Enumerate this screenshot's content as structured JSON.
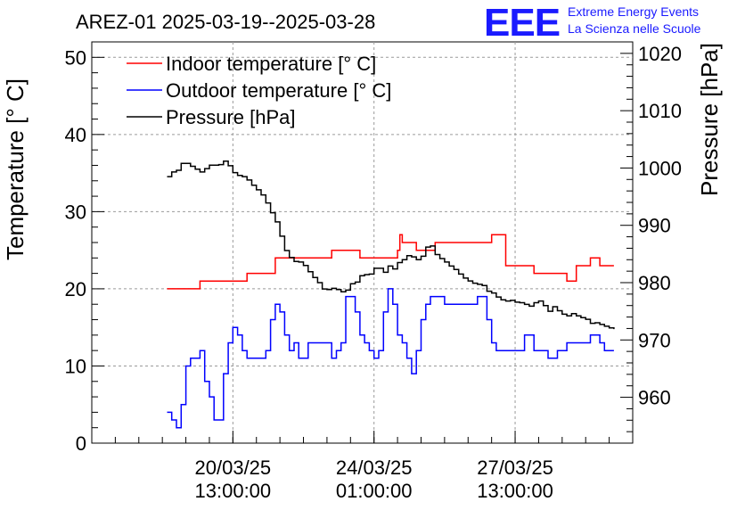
{
  "chart_data": {
    "type": "line",
    "title": "AREZ-01 2025-03-19--2025-03-28",
    "logo": {
      "letters": "EEE",
      "line1": "Extreme Energy Events",
      "line2": "La Scienza nelle Scuole"
    },
    "ylabel": "Temperature [° C]",
    "y2label": "Pressure [hPa]",
    "ylim": [
      0,
      52
    ],
    "y2lim": [
      952,
      1022
    ],
    "xlim": [
      0,
      11.5
    ],
    "yticks": [
      "0",
      "10",
      "20",
      "30",
      "40",
      "50"
    ],
    "y2ticks": [
      "960",
      "970",
      "980",
      "990",
      "1000",
      "1010",
      "1020"
    ],
    "xticks": [
      {
        "line1": "20/03/25",
        "line2": "13:00:00",
        "x": 3
      },
      {
        "line1": "24/03/25",
        "line2": "01:00:00",
        "x": 6
      },
      {
        "line1": "27/03/25",
        "line2": "13:00:00",
        "x": 9
      }
    ],
    "grid": true,
    "legend_position": "top-left",
    "series": [
      {
        "name": "Indoor temperature [° C]",
        "color": "#ff0000",
        "axis": "left",
        "x": [
          1.6,
          1.9,
          2.2,
          2.3,
          2.6,
          2.8,
          3.0,
          3.3,
          3.6,
          3.9,
          4.2,
          4.5,
          4.8,
          5.1,
          5.4,
          5.7,
          6.0,
          6.3,
          6.45,
          6.5,
          6.55,
          6.6,
          6.8,
          6.9,
          7.0,
          7.3,
          7.6,
          7.9,
          8.2,
          8.3,
          8.5,
          8.8,
          9.1,
          9.4,
          9.7,
          9.9,
          10.1,
          10.3,
          10.6,
          10.8,
          11.1
        ],
        "y": [
          20,
          20,
          20,
          21,
          21,
          21,
          21,
          22,
          22,
          24,
          24,
          24,
          24,
          25,
          25,
          24,
          24,
          24,
          24,
          25,
          27,
          26,
          26,
          25,
          25,
          26,
          26,
          26,
          26,
          26,
          27,
          23,
          23,
          22,
          22,
          22,
          21,
          23,
          24,
          23,
          23
        ]
      },
      {
        "name": "Outdoor temperature [° C]",
        "color": "#0000ff",
        "axis": "left",
        "x": [
          1.6,
          1.7,
          1.8,
          1.9,
          2.0,
          2.1,
          2.3,
          2.4,
          2.5,
          2.6,
          2.7,
          2.8,
          2.9,
          3.0,
          3.1,
          3.2,
          3.3,
          3.4,
          3.5,
          3.6,
          3.7,
          3.8,
          3.9,
          4.0,
          4.1,
          4.2,
          4.3,
          4.4,
          4.5,
          4.6,
          4.7,
          4.8,
          4.9,
          5.0,
          5.1,
          5.2,
          5.3,
          5.4,
          5.5,
          5.6,
          5.7,
          5.8,
          5.9,
          6.0,
          6.1,
          6.2,
          6.3,
          6.4,
          6.5,
          6.6,
          6.7,
          6.8,
          6.9,
          7.0,
          7.1,
          7.2,
          7.3,
          7.4,
          7.5,
          7.6,
          7.7,
          7.8,
          7.9,
          8.0,
          8.1,
          8.2,
          8.3,
          8.4,
          8.5,
          8.6,
          8.7,
          8.8,
          8.9,
          9.0,
          9.1,
          9.2,
          9.3,
          9.4,
          9.5,
          9.6,
          9.7,
          9.8,
          9.9,
          10.0,
          10.1,
          10.2,
          10.3,
          10.4,
          10.5,
          10.6,
          10.7,
          10.8,
          10.9,
          11.0,
          11.1
        ],
        "y": [
          4,
          3,
          2,
          5,
          10,
          11,
          12,
          8,
          6,
          3,
          3,
          9,
          13,
          15,
          14,
          12,
          11,
          11,
          11,
          11,
          12,
          16,
          18,
          17,
          14,
          12,
          13,
          11,
          11,
          13,
          13,
          13,
          13,
          13,
          11,
          12,
          13,
          19,
          19,
          17,
          14,
          13,
          12,
          11,
          12,
          17,
          20,
          18,
          14,
          13,
          11,
          9,
          12,
          16,
          18,
          19,
          19,
          19,
          18,
          18,
          18,
          18,
          18,
          18,
          18,
          19,
          19,
          16,
          13,
          12,
          12,
          12,
          12,
          12,
          12,
          14,
          14,
          12,
          12,
          12,
          11,
          11,
          12,
          12,
          13,
          13,
          13,
          13,
          13,
          14,
          14,
          13,
          12,
          12,
          12
        ],
        "note_values_in_celsius": ""
      },
      {
        "name": "Pressure [hPa]",
        "color": "#000000",
        "axis": "right",
        "x": [
          1.6,
          1.7,
          1.8,
          1.9,
          2.0,
          2.1,
          2.2,
          2.3,
          2.4,
          2.5,
          2.6,
          2.7,
          2.8,
          2.9,
          3.0,
          3.1,
          3.2,
          3.3,
          3.4,
          3.5,
          3.6,
          3.7,
          3.8,
          3.9,
          4.0,
          4.1,
          4.2,
          4.3,
          4.4,
          4.5,
          4.6,
          4.7,
          4.8,
          4.9,
          5.0,
          5.1,
          5.2,
          5.3,
          5.4,
          5.5,
          5.6,
          5.7,
          5.8,
          5.9,
          6.0,
          6.1,
          6.2,
          6.3,
          6.4,
          6.5,
          6.6,
          6.7,
          6.8,
          6.9,
          7.0,
          7.1,
          7.2,
          7.3,
          7.4,
          7.5,
          7.6,
          7.7,
          7.8,
          7.9,
          8.0,
          8.1,
          8.2,
          8.3,
          8.4,
          8.5,
          8.6,
          8.7,
          8.8,
          8.9,
          9.0,
          9.1,
          9.2,
          9.3,
          9.4,
          9.5,
          9.6,
          9.7,
          9.8,
          9.9,
          10.0,
          10.1,
          10.2,
          10.3,
          10.4,
          10.5,
          10.6,
          10.7,
          10.8,
          10.9,
          11.0,
          11.1
        ],
        "y": [
          998.5,
          999.3,
          999.6,
          1000.8,
          1000.8,
          1000.3,
          999.8,
          999.3,
          999.9,
          1000.5,
          1000.5,
          1000.6,
          1001.2,
          1000.4,
          999.2,
          998.7,
          998.5,
          997.9,
          997.0,
          996.2,
          995.3,
          993.9,
          992.2,
          990.6,
          988.1,
          985.6,
          984.4,
          983.7,
          983.6,
          983.0,
          981.9,
          980.9,
          980.0,
          978.9,
          978.8,
          979.0,
          978.8,
          978.4,
          978.7,
          979.8,
          980.1,
          981.2,
          981.4,
          981.5,
          982.5,
          982.5,
          981.8,
          982.9,
          982.4,
          983.5,
          984.0,
          984.7,
          984.5,
          984.0,
          984.6,
          986.2,
          986.4,
          984.9,
          984.2,
          983.6,
          982.9,
          982.3,
          981.5,
          980.8,
          980.3,
          979.9,
          979.7,
          979.5,
          978.5,
          978.2,
          977.5,
          977.0,
          976.8,
          976.9,
          976.6,
          976.5,
          976.2,
          975.9,
          976.5,
          976.8,
          976.0,
          975.0,
          975.8,
          975.1,
          974.5,
          974.2,
          974.6,
          974.2,
          973.9,
          973.6,
          972.9,
          973.0,
          972.7,
          972.4,
          972.1,
          971.9
        ]
      }
    ]
  }
}
